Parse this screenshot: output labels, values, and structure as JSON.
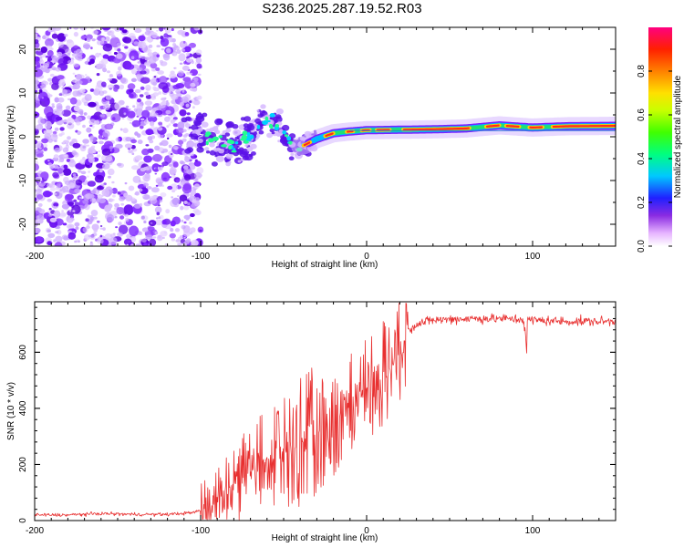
{
  "title": "S236.2025.287.19.52.R03",
  "colors": {
    "snr_line": "#e83030",
    "spectral_purple": "#7a20ff",
    "spectral_light": "#d6b8ff",
    "ridge_line": "#2c7fd9"
  },
  "chart_data": [
    {
      "type": "heatmap",
      "name": "spectrogram",
      "xlabel": "Height of straight line (km)",
      "ylabel": "Frequency (Hz)",
      "xlim": [
        -200,
        150
      ],
      "ylim": [
        -25,
        25
      ],
      "x_ticks": [
        -200,
        -100,
        0,
        100
      ],
      "y_ticks": [
        -20,
        -10,
        0,
        10,
        20
      ],
      "ridge": [
        {
          "x": -100,
          "y": 0.5
        },
        {
          "x": -90,
          "y": -1
        },
        {
          "x": -80,
          "y": -2
        },
        {
          "x": -70,
          "y": 0.5
        },
        {
          "x": -60,
          "y": 4.5
        },
        {
          "x": -52,
          "y": 2
        },
        {
          "x": -45,
          "y": -2.5
        },
        {
          "x": -38,
          "y": -2
        },
        {
          "x": -30,
          "y": -0.5
        },
        {
          "x": -20,
          "y": 0.8
        },
        {
          "x": -10,
          "y": 1.2
        },
        {
          "x": 0,
          "y": 1.5
        },
        {
          "x": 20,
          "y": 1.6
        },
        {
          "x": 40,
          "y": 1.7
        },
        {
          "x": 60,
          "y": 1.9
        },
        {
          "x": 80,
          "y": 2.6
        },
        {
          "x": 100,
          "y": 2.1
        },
        {
          "x": 120,
          "y": 2.4
        },
        {
          "x": 150,
          "y": 2.5
        }
      ],
      "colorbar": {
        "label": "Normalized spectral amplitude",
        "range": [
          0,
          1
        ],
        "ticks": [
          "0.0",
          "0.2",
          "0.4",
          "0.6",
          "0.8"
        ]
      }
    },
    {
      "type": "line",
      "name": "snr",
      "xlabel": "Height of straight line (km)",
      "ylabel": "SNR (10 * v/v)",
      "xlim": [
        -200,
        150
      ],
      "ylim": [
        0,
        780
      ],
      "x_ticks": [
        -200,
        -100,
        0,
        100
      ],
      "y_ticks": [
        0,
        200,
        400,
        600
      ],
      "series": [
        {
          "name": "SNR",
          "x": [
            -200,
            -180,
            -160,
            -140,
            -120,
            -105,
            -95,
            -85,
            -75,
            -65,
            -55,
            -45,
            -35,
            -25,
            -15,
            -5,
            0,
            5,
            10,
            15,
            20,
            25,
            30,
            40,
            60,
            80,
            100,
            120,
            150
          ],
          "y": [
            20,
            20,
            25,
            22,
            22,
            28,
            45,
            110,
            150,
            200,
            240,
            250,
            300,
            320,
            380,
            420,
            480,
            510,
            530,
            560,
            620,
            680,
            700,
            715,
            720,
            720,
            715,
            710,
            710
          ]
        }
      ]
    }
  ]
}
